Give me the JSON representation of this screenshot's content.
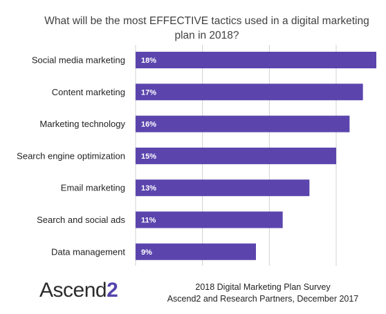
{
  "chart_data": {
    "type": "bar",
    "orientation": "horizontal",
    "title": "What will be the most EFFECTIVE  tactics used in a digital marketing plan in 2018?",
    "categories": [
      "Social media marketing",
      "Content marketing",
      "Marketing technology",
      "Search engine optimization",
      "Email marketing",
      "Search and social ads",
      "Data management"
    ],
    "values": [
      18,
      17,
      16,
      15,
      13,
      11,
      9
    ],
    "value_labels": [
      "18%",
      "17%",
      "16%",
      "15%",
      "13%",
      "11%",
      "9%"
    ],
    "xlim": [
      0,
      18
    ],
    "grid": true,
    "bar_color": "#5b45ad"
  },
  "footer": {
    "logo_text": "Ascend",
    "logo_suffix": "2",
    "source_line1": "2018 Digital Marketing Plan Survey",
    "source_line2": "Ascend2 and Research Partners, December 2017"
  }
}
